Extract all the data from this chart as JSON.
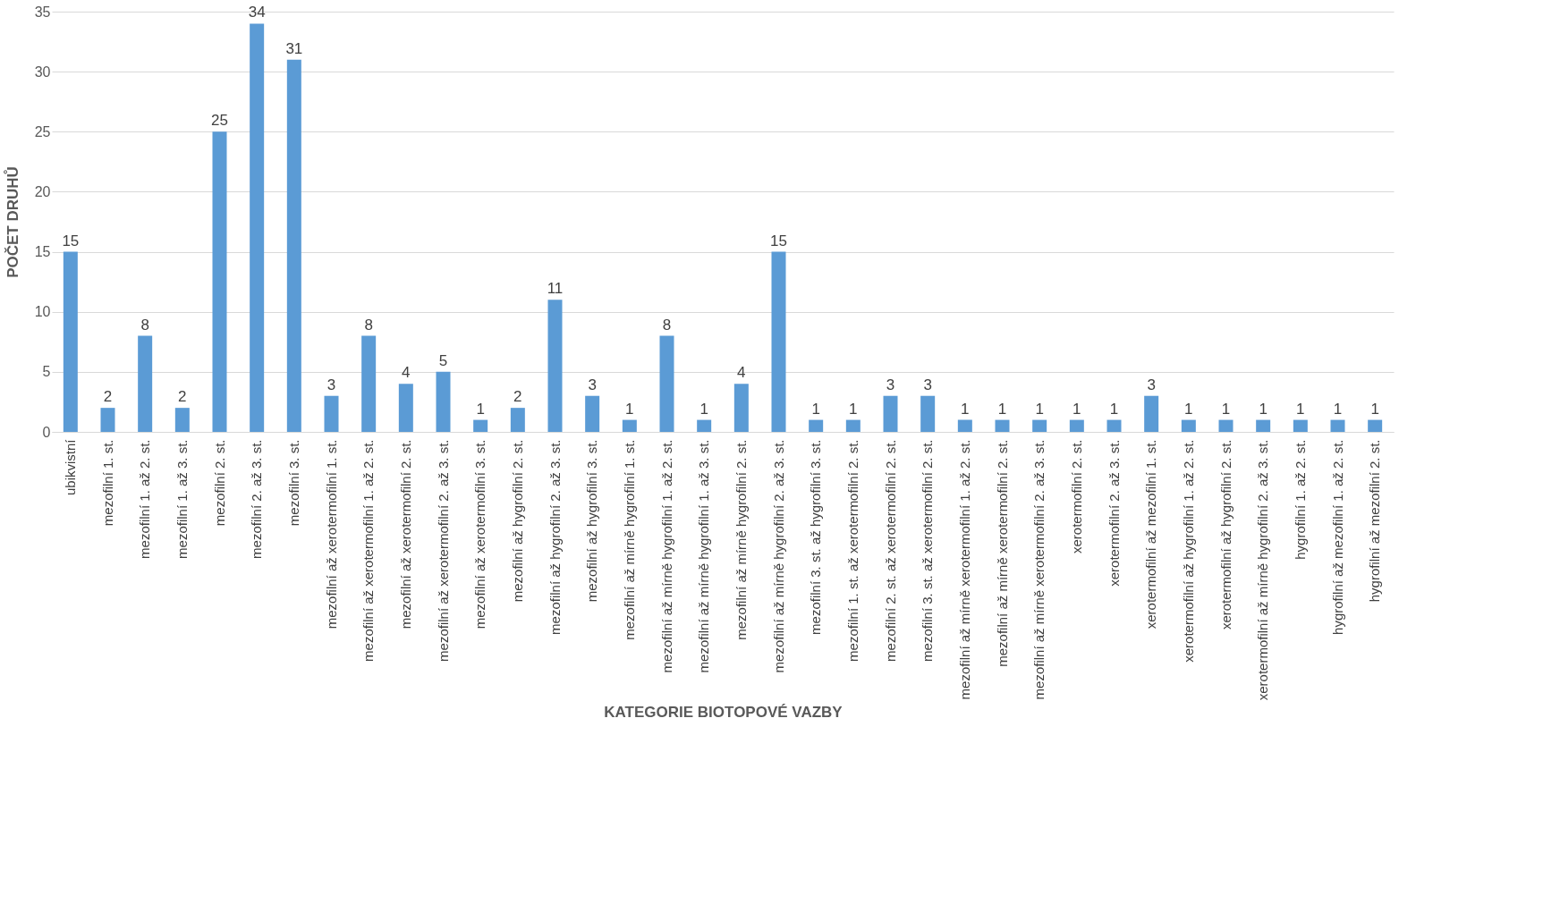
{
  "chart_data": {
    "type": "bar",
    "xlabel": "KATEGORIE BIOTOPOVÉ VAZBY",
    "ylabel": "POČET DRUHŮ",
    "categories": [
      "ubikvistní",
      "mezofilní 1. st.",
      "mezofilní 1. až 2. st.",
      "mezofilní 1. až 3. st.",
      "mezofilní 2. st.",
      "mezofilní 2. až 3. st.",
      "mezofilní 3. st.",
      "mezofilní až xerotermofilní 1. st.",
      "mezofilní až xerotermofilní 1. až 2. st.",
      "mezofilní až xerotermofilní 2. st.",
      "mezofilní až xerotermofilní 2. až 3. st.",
      "mezofilní až xerotermofilní 3. st.",
      "mezofilní až hygrofilní 2. st.",
      "mezofilní až hygrofilní 2. až 3. st.",
      "mezofilní až hygrofilní 3. st.",
      "mezofilní až mírně hygrofilní 1. st.",
      "mezofilní až mírně hygrofilní 1. až 2. st.",
      "mezofilní až mírně hygrofilní 1. až 3. st.",
      "mezofilní až mírně hygrofilní 2. st.",
      "mezofilní až mírně hygrofilní 2. až 3. st.",
      "mezofilní 3. st. až hygrofilní 3. st.",
      "mezofilní 1. st. až xerotermofilní 2. st.",
      "mezofilní 2. st. až xerotermofilní 2. st.",
      "mezofilní 3. st. až xerotermofilní 2. st.",
      "mezofilní až mírně xerotermofilní 1. až 2. st.",
      "mezofilní až mírně xerotermofilní 2. st.",
      "mezofilní až mírně xerotermofilní 2. až 3. st.",
      "xerotermofilní 2. st.",
      "xerotermofilní 2. až 3. st.",
      "xerotermofilní až mezofilní 1. st.",
      "xerotermofilní až hygrofilní 1. až 2. st.",
      "xerotermofilní až hygrofilní 2. st.",
      "xerotermofilní až mírně hygrofilní 2. až 3. st.",
      "hygrofilní 1. až 2. st.",
      "hygrofilní až mezofilní 1. až 2. st.",
      "hygrofilní až mezofilní 2. st."
    ],
    "values": [
      15,
      2,
      8,
      2,
      25,
      34,
      31,
      3,
      8,
      4,
      5,
      1,
      2,
      11,
      3,
      1,
      8,
      1,
      4,
      15,
      1,
      1,
      3,
      3,
      1,
      1,
      1,
      1,
      1,
      3,
      1,
      1,
      1,
      1,
      1,
      1
    ],
    "color": "#5b9bd5",
    "ylim": [
      0,
      35
    ],
    "yticks": [
      0,
      5,
      10,
      15,
      20,
      25,
      30,
      35
    ],
    "grid": "y",
    "data_labels": true
  }
}
